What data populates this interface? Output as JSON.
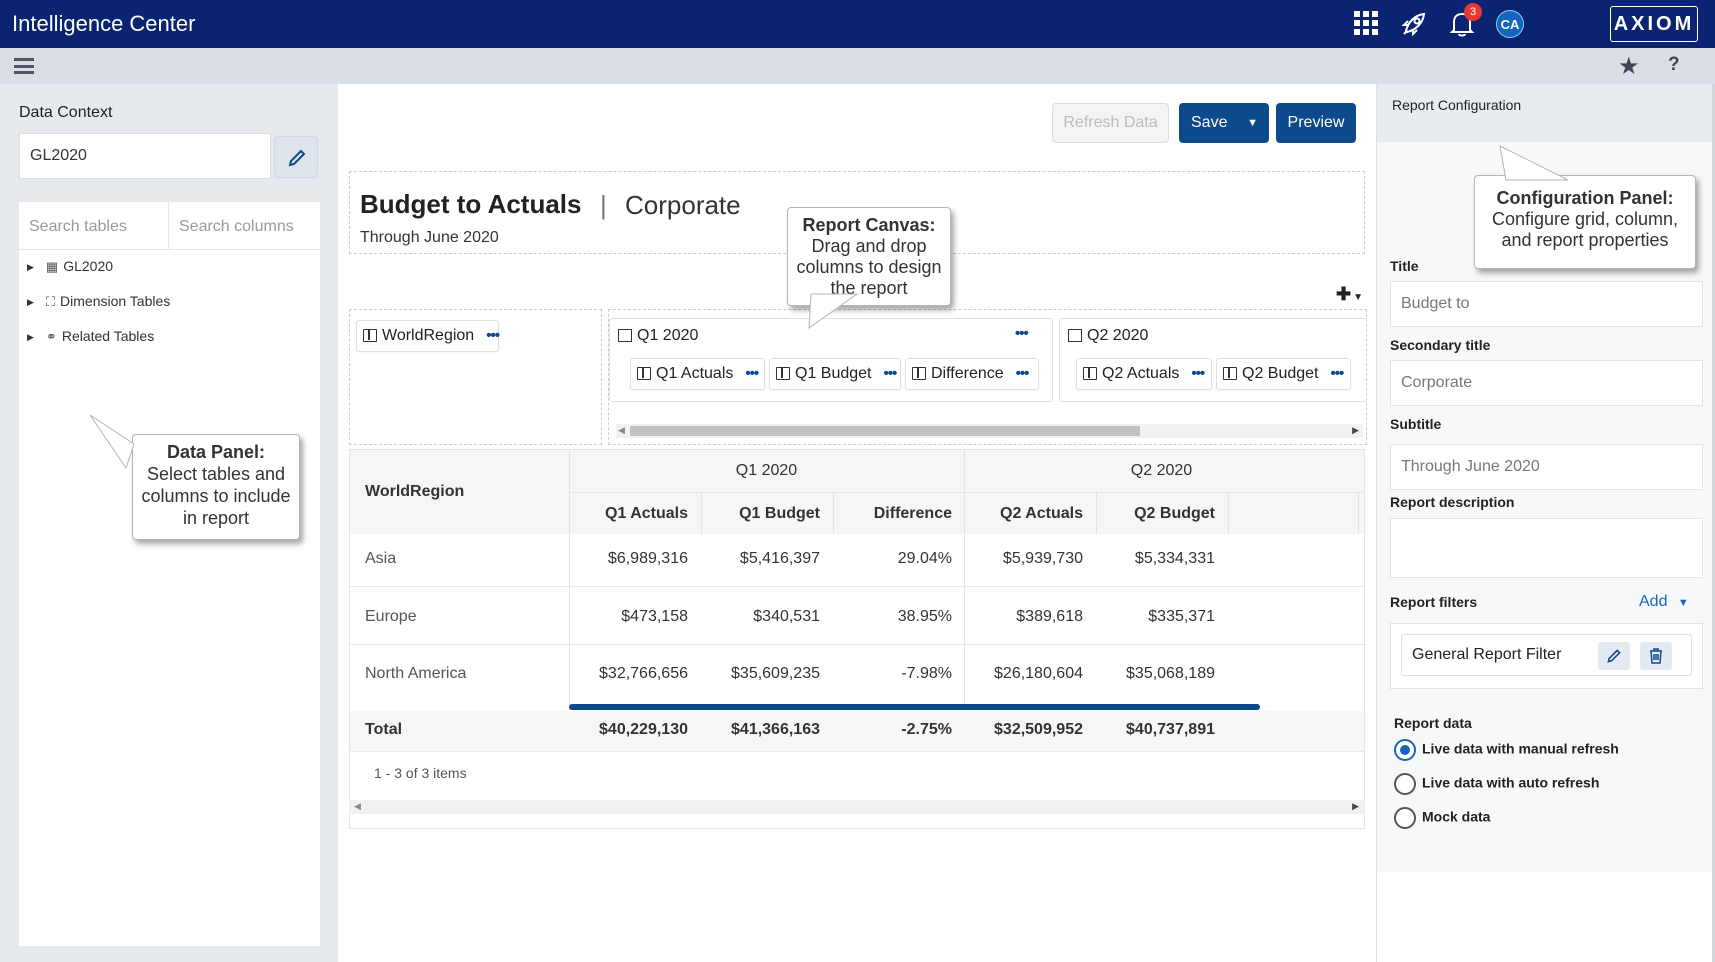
{
  "app": {
    "title": "Intelligence Center",
    "notification_count": "3",
    "avatar_initials": "CA",
    "logo_text": "AXIOM",
    "brand_color": "#0a2472",
    "accent_color": "#0d4a8c"
  },
  "icons": {
    "apps": "grid-icon",
    "launch": "rocket-icon",
    "notifications": "bell-icon",
    "menu": "hamburger-icon",
    "favorite": "star-icon",
    "help": "help-icon"
  },
  "data_context": {
    "label": "Data Context",
    "value": "GL2020",
    "search_tables_placeholder": "Search tables",
    "search_columns_placeholder": "Search columns",
    "tree": [
      {
        "label": "GL2020",
        "icon": "table-icon"
      },
      {
        "label": "Dimension Tables",
        "icon": "dimension-icon"
      },
      {
        "label": "Related Tables",
        "icon": "link-icon"
      }
    ]
  },
  "callouts": {
    "data_panel": {
      "title": "Data Panel:",
      "text": "Select tables and columns to include in report"
    },
    "report_canvas": {
      "title": "Report Canvas:",
      "text": "Drag and drop columns to design the report"
    },
    "config_panel": {
      "title": "Configuration Panel:",
      "text": "Configure grid, column, and report properties"
    }
  },
  "toolbar": {
    "refresh_label": "Refresh Data",
    "save_label": "Save",
    "preview_label": "Preview"
  },
  "report": {
    "title": "Budget to Actuals",
    "separator": "|",
    "secondary_title": "Corporate",
    "subtitle": "Through June 2020"
  },
  "designer": {
    "row_column": "WorldRegion",
    "groups": [
      {
        "label": "Q1 2020",
        "columns": [
          "Q1 Actuals",
          "Q1 Budget",
          "Difference"
        ]
      },
      {
        "label": "Q2 2020",
        "columns": [
          "Q2 Actuals",
          "Q2 Budget"
        ]
      }
    ]
  },
  "grid": {
    "row_header": "WorldRegion",
    "group_headers": [
      "Q1 2020",
      "Q2 2020"
    ],
    "columns": [
      "Q1 Actuals",
      "Q1 Budget",
      "Difference",
      "Q2 Actuals",
      "Q2 Budget"
    ],
    "rows": [
      {
        "region": "Asia",
        "values": [
          "$6,989,316",
          "$5,416,397",
          "29.04%",
          "$5,939,730",
          "$5,334,331"
        ]
      },
      {
        "region": "Europe",
        "values": [
          "$473,158",
          "$340,531",
          "38.95%",
          "$389,618",
          "$335,371"
        ]
      },
      {
        "region": "North America",
        "values": [
          "$32,766,656",
          "$35,609,235",
          "-7.98%",
          "$26,180,604",
          "$35,068,189"
        ]
      }
    ],
    "total": {
      "label": "Total",
      "values": [
        "$40,229,130",
        "$41,366,163",
        "-2.75%",
        "$32,509,952",
        "$40,737,891"
      ]
    },
    "pager": "1 - 3 of 3 items"
  },
  "config": {
    "header": "Report Configuration",
    "title_label": "Title",
    "title_value": "Budget to",
    "secondary_label": "Secondary title",
    "secondary_value": "Corporate",
    "subtitle_label": "Subtitle",
    "subtitle_value": "Through June 2020",
    "description_label": "Report description",
    "description_value": "",
    "filters_label": "Report filters",
    "add_label": "Add",
    "filter_name": "General Report Filter",
    "report_data_label": "Report data",
    "report_data_options": [
      "Live data with manual refresh",
      "Live data with auto refresh",
      "Mock data"
    ],
    "report_data_selected": "Live data with manual refresh"
  }
}
